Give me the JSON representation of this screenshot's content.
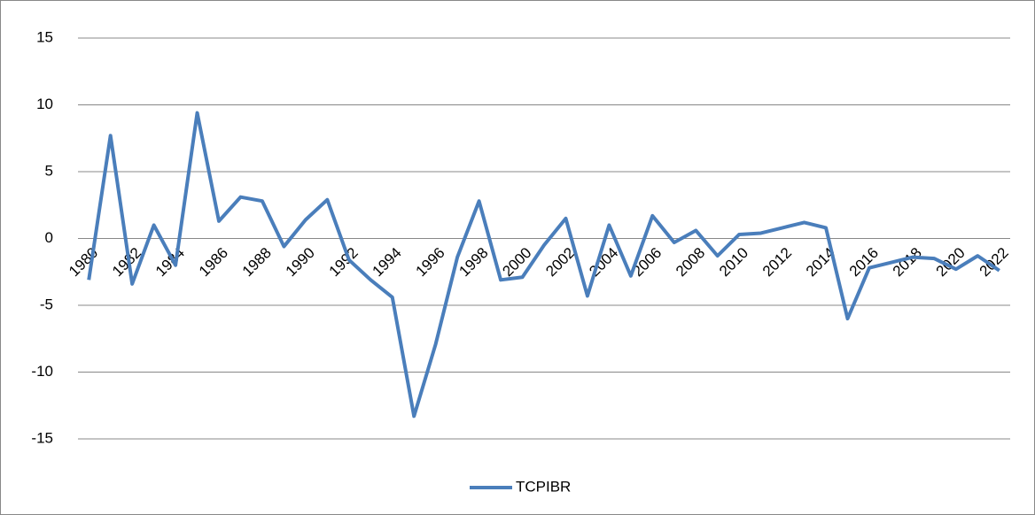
{
  "chart_data": {
    "type": "line",
    "categories": [
      "1980",
      null,
      "1982",
      null,
      "1984",
      null,
      "1986",
      null,
      "1988",
      null,
      "1990",
      null,
      "1992",
      null,
      "1994",
      null,
      "1996",
      null,
      "1998",
      null,
      "2000",
      null,
      "2002",
      null,
      "2004",
      null,
      "2006",
      null,
      "2008",
      null,
      "2010",
      null,
      "2012",
      null,
      "2014",
      null,
      "2016",
      null,
      "2018",
      null,
      "2020",
      null,
      "2022"
    ],
    "series": [
      {
        "name": "TCPIBR",
        "color": "#4a7ebb",
        "values": [
          -3.1,
          7.7,
          -3.4,
          1.0,
          -2.0,
          9.4,
          1.3,
          3.1,
          2.8,
          -0.6,
          1.4,
          2.9,
          -1.6,
          -3.1,
          -4.4,
          -13.3,
          -7.9,
          -1.4,
          2.8,
          -3.1,
          -2.9,
          -0.5,
          1.5,
          -4.3,
          1.0,
          -2.8,
          1.7,
          -0.3,
          0.6,
          -1.3,
          0.3,
          0.4,
          0.8,
          1.2,
          0.8,
          -6.0,
          -2.2,
          -1.8,
          -1.4,
          -1.5,
          -2.3,
          -1.3,
          -2.4
        ]
      }
    ],
    "ylim": [
      -15,
      15
    ],
    "yticks": [
      -15,
      -10,
      -5,
      0,
      5,
      10,
      15
    ],
    "grid": true,
    "legend": "bottom"
  }
}
